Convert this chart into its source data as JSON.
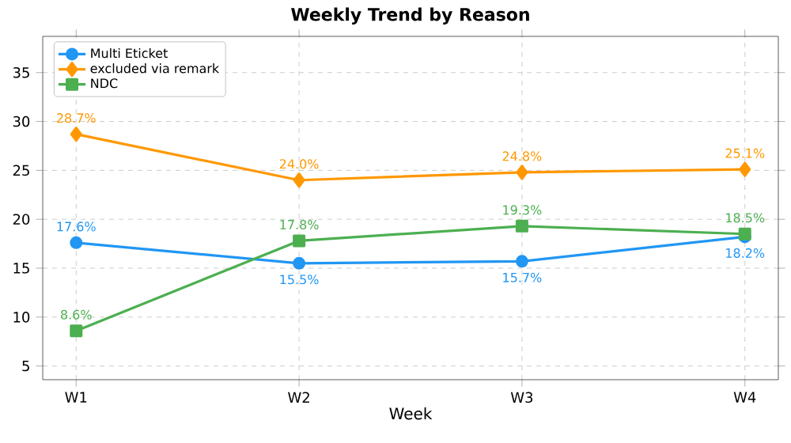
{
  "chart_data": {
    "type": "line",
    "title": "Weekly Trend by Reason",
    "xlabel": "Week",
    "categories": [
      "W1",
      "W2",
      "W3",
      "W4"
    ],
    "series": [
      {
        "name": "Multi Eticket",
        "color": "#2196f3",
        "marker": "circle",
        "values": [
          17.6,
          15.5,
          15.7,
          18.2
        ],
        "value_labels": [
          "17.6%",
          "15.5%",
          "15.7%",
          "18.2%"
        ]
      },
      {
        "name": "excluded via remark",
        "color": "#ff9800",
        "marker": "diamond",
        "values": [
          28.7,
          24.0,
          24.8,
          25.1
        ],
        "value_labels": [
          "28.7%",
          "24.0%",
          "24.8%",
          "25.1%"
        ]
      },
      {
        "name": "NDC",
        "color": "#4caf50",
        "marker": "square",
        "values": [
          8.6,
          17.8,
          19.3,
          18.5
        ],
        "value_labels": [
          "8.6%",
          "17.8%",
          "19.3%",
          "18.5%"
        ]
      }
    ],
    "ylim": [
      3.6,
      38.7
    ],
    "yticks": [
      5,
      10,
      15,
      20,
      25,
      30,
      35
    ],
    "grid": true,
    "legend": "top left",
    "line_style": "solid"
  }
}
